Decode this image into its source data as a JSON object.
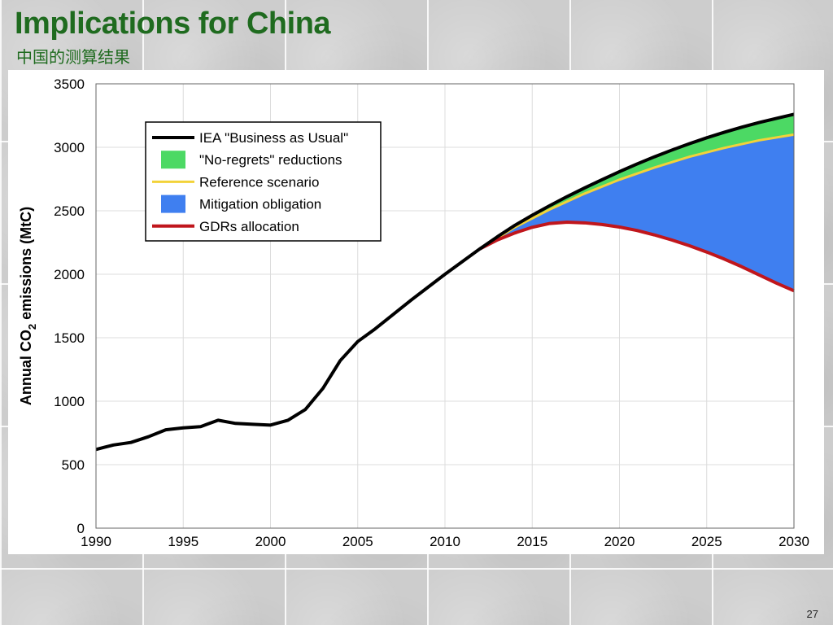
{
  "slide": {
    "title": "Implications for China",
    "subtitle": "中国的测算结果",
    "page_number": "27"
  },
  "chart_data": {
    "type": "area",
    "title": "",
    "xlabel": "",
    "ylabel_main": "Annual CO",
    "ylabel_sub": "2",
    "ylabel_tail": " emissions (MtC)",
    "xlim": [
      1990,
      2030
    ],
    "ylim": [
      0,
      3500
    ],
    "x_ticks": [
      1990,
      1995,
      2000,
      2005,
      2010,
      2015,
      2020,
      2025,
      2030
    ],
    "y_ticks": [
      0,
      500,
      1000,
      1500,
      2000,
      2500,
      3000,
      3500
    ],
    "grid": true,
    "legend_position": "top-left",
    "colors": {
      "bau": "#000000",
      "no_regrets": "#4cd964",
      "reference": "#f2d23a",
      "mitigation": "#3f7ff0",
      "gdrs": "#c0161c"
    },
    "legend": [
      {
        "key": "bau",
        "label": "IEA \"Business as Usual\"",
        "kind": "line"
      },
      {
        "key": "no_regrets",
        "label": "\"No-regrets\" reductions",
        "kind": "box"
      },
      {
        "key": "reference",
        "label": "Reference scenario",
        "kind": "line"
      },
      {
        "key": "mitigation",
        "label": "Mitigation obligation",
        "kind": "box"
      },
      {
        "key": "gdrs",
        "label": "GDRs allocation",
        "kind": "line"
      }
    ],
    "series": [
      {
        "key": "bau",
        "x": [
          1990,
          1991,
          1992,
          1993,
          1994,
          1995,
          1996,
          1997,
          1998,
          1999,
          2000,
          2001,
          2002,
          2003,
          2004,
          2005,
          2006,
          2007,
          2008,
          2009,
          2010,
          2011,
          2012,
          2013,
          2014,
          2015,
          2016,
          2017,
          2018,
          2019,
          2020,
          2021,
          2022,
          2023,
          2024,
          2025,
          2026,
          2027,
          2028,
          2029,
          2030
        ],
        "y": [
          620,
          655,
          675,
          720,
          775,
          790,
          800,
          850,
          825,
          818,
          812,
          850,
          935,
          1100,
          1320,
          1470,
          1570,
          1680,
          1790,
          1895,
          2000,
          2100,
          2200,
          2295,
          2385,
          2465,
          2540,
          2612,
          2680,
          2745,
          2808,
          2868,
          2925,
          2978,
          3028,
          3075,
          3118,
          3158,
          3195,
          3228,
          3260
        ]
      },
      {
        "key": "reference",
        "x": [
          2012,
          2014,
          2016,
          2018,
          2020,
          2022,
          2024,
          2026,
          2028,
          2030
        ],
        "y": [
          2200,
          2370,
          2510,
          2635,
          2745,
          2840,
          2925,
          2995,
          3055,
          3100
        ]
      },
      {
        "key": "gdrs",
        "x": [
          2012,
          2013,
          2014,
          2015,
          2016,
          2017,
          2018,
          2019,
          2020,
          2021,
          2022,
          2023,
          2024,
          2025,
          2026,
          2027,
          2028,
          2029,
          2030
        ],
        "y": [
          2200,
          2270,
          2325,
          2370,
          2400,
          2410,
          2405,
          2392,
          2372,
          2345,
          2310,
          2270,
          2225,
          2175,
          2120,
          2060,
          1995,
          1930,
          1870
        ]
      }
    ]
  }
}
